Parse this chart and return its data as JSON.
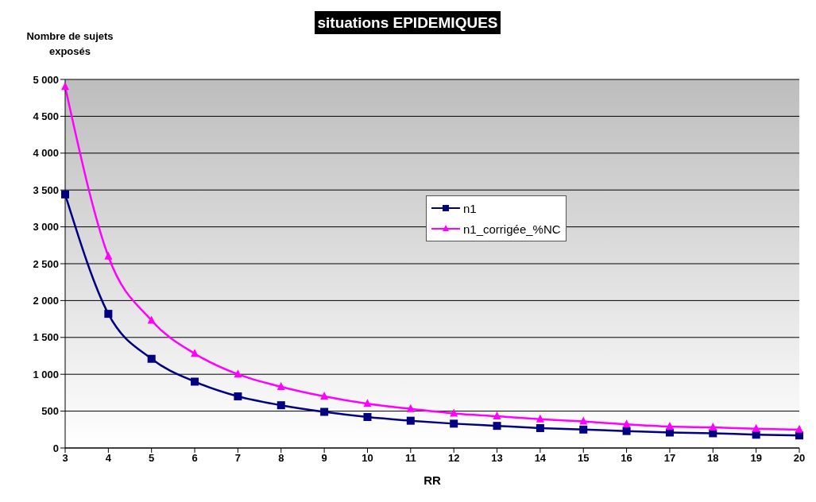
{
  "chart_data": {
    "type": "line",
    "title": "situations EPIDEMIQUES",
    "ylabel": "Nombre de sujets exposés",
    "xlabel": "RR",
    "categories": [
      "3",
      "4",
      "5",
      "6",
      "7",
      "8",
      "9",
      "10",
      "11",
      "12",
      "13",
      "14",
      "15",
      "16",
      "17",
      "18",
      "19",
      "20"
    ],
    "series": [
      {
        "name": "n1",
        "color": "#000080",
        "marker": "square",
        "values": [
          3440,
          1820,
          1210,
          900,
          700,
          580,
          490,
          420,
          370,
          330,
          300,
          270,
          250,
          230,
          210,
          200,
          180,
          170
        ]
      },
      {
        "name": "n1_corrigée_%NC",
        "color": "#ff00ff",
        "marker": "triangle",
        "values": [
          4900,
          2600,
          1730,
          1280,
          1000,
          830,
          700,
          600,
          530,
          470,
          430,
          390,
          360,
          320,
          290,
          280,
          260,
          250
        ]
      }
    ],
    "ylim": [
      0,
      5000
    ],
    "yticks": [
      0,
      500,
      {
        "value": 1000,
        "label": "1 000"
      },
      {
        "value": 1500,
        "label": "1 500"
      },
      {
        "value": 2000,
        "label": "2 000"
      },
      {
        "value": 2500,
        "label": "2 500"
      },
      {
        "value": 3000,
        "label": "3 000"
      },
      {
        "value": 3500,
        "label": "3 500"
      },
      {
        "value": 4000,
        "label": "4 000"
      },
      {
        "value": 4500,
        "label": "4 500"
      },
      {
        "value": 5000,
        "label": "5 000"
      }
    ],
    "grid": "y",
    "legend": "center",
    "line_style": "solid"
  }
}
